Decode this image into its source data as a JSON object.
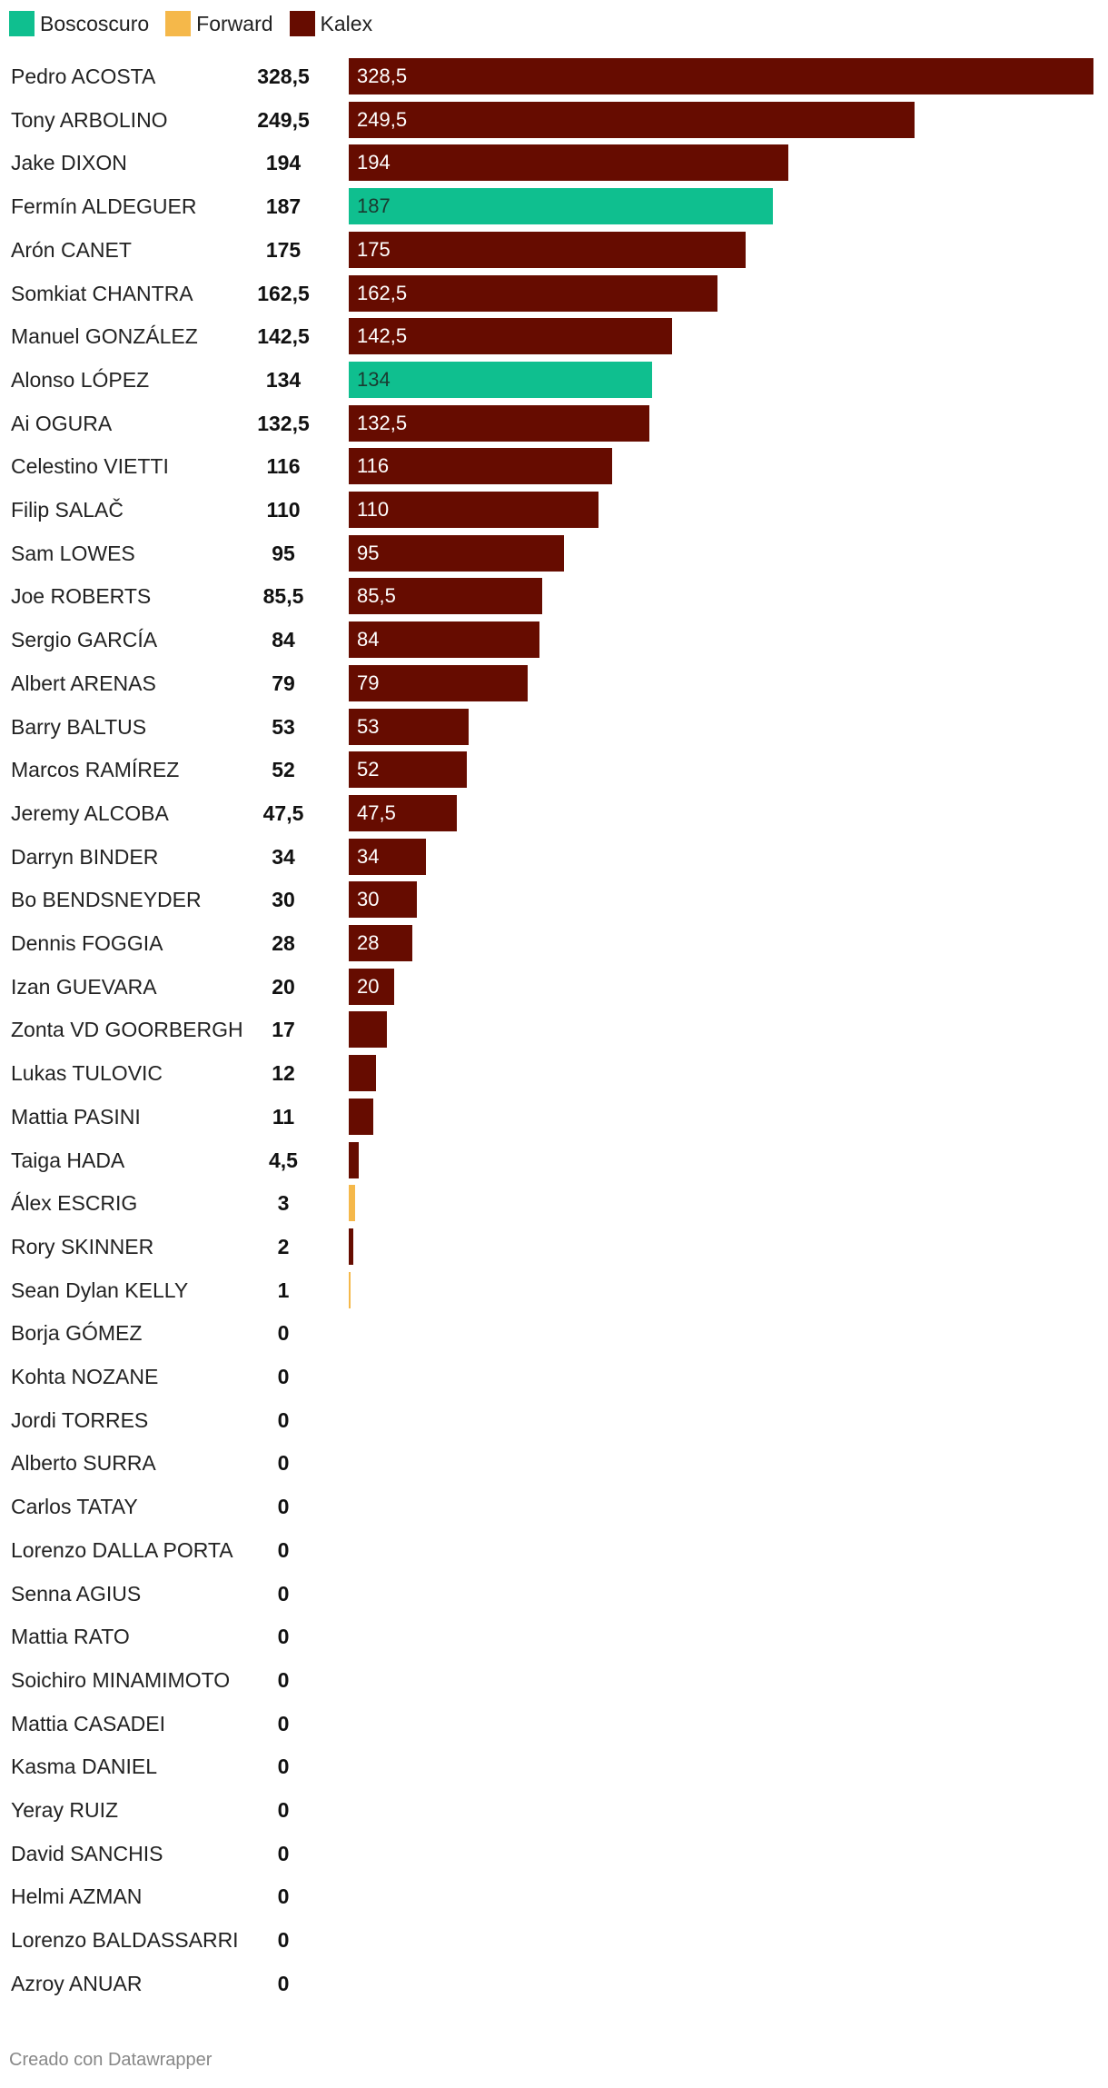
{
  "legend": [
    {
      "name": "Boscoscuro",
      "color": "#0fbf8f"
    },
    {
      "name": "Forward",
      "color": "#f5b84a"
    },
    {
      "name": "Kalex",
      "color": "#660c00"
    }
  ],
  "chart_data": {
    "type": "bar",
    "orientation": "horizontal",
    "xlim": [
      0,
      328.5
    ],
    "rows": [
      {
        "name": "Pedro ACOSTA",
        "value": 328.5,
        "display": "328,5",
        "bar_label": "328,5",
        "team": "Kalex"
      },
      {
        "name": "Tony ARBOLINO",
        "value": 249.5,
        "display": "249,5",
        "bar_label": "249,5",
        "team": "Kalex"
      },
      {
        "name": "Jake DIXON",
        "value": 194,
        "display": "194",
        "bar_label": "194",
        "team": "Kalex"
      },
      {
        "name": "Fermín ALDEGUER",
        "value": 187,
        "display": "187",
        "bar_label": "187",
        "team": "Boscoscuro"
      },
      {
        "name": "Arón CANET",
        "value": 175,
        "display": "175",
        "bar_label": "175",
        "team": "Kalex"
      },
      {
        "name": "Somkiat CHANTRA",
        "value": 162.5,
        "display": "162,5",
        "bar_label": "162,5",
        "team": "Kalex"
      },
      {
        "name": "Manuel GONZÁLEZ",
        "value": 142.5,
        "display": "142,5",
        "bar_label": "142,5",
        "team": "Kalex"
      },
      {
        "name": "Alonso LÓPEZ",
        "value": 134,
        "display": "134",
        "bar_label": "134",
        "team": "Boscoscuro"
      },
      {
        "name": "Ai OGURA",
        "value": 132.5,
        "display": "132,5",
        "bar_label": "132,5",
        "team": "Kalex"
      },
      {
        "name": "Celestino VIETTI",
        "value": 116,
        "display": "116",
        "bar_label": "116",
        "team": "Kalex"
      },
      {
        "name": "Filip SALAČ",
        "value": 110,
        "display": "110",
        "bar_label": "110",
        "team": "Kalex"
      },
      {
        "name": "Sam LOWES",
        "value": 95,
        "display": "95",
        "bar_label": "95",
        "team": "Kalex"
      },
      {
        "name": "Joe ROBERTS",
        "value": 85.5,
        "display": "85,5",
        "bar_label": "85,5",
        "team": "Kalex"
      },
      {
        "name": "Sergio GARCÍA",
        "value": 84,
        "display": "84",
        "bar_label": "84",
        "team": "Kalex"
      },
      {
        "name": "Albert ARENAS",
        "value": 79,
        "display": "79",
        "bar_label": "79",
        "team": "Kalex"
      },
      {
        "name": "Barry BALTUS",
        "value": 53,
        "display": "53",
        "bar_label": "53",
        "team": "Kalex"
      },
      {
        "name": "Marcos RAMÍREZ",
        "value": 52,
        "display": "52",
        "bar_label": "52",
        "team": "Kalex"
      },
      {
        "name": "Jeremy ALCOBA",
        "value": 47.5,
        "display": "47,5",
        "bar_label": "47,5",
        "team": "Kalex"
      },
      {
        "name": "Darryn BINDER",
        "value": 34,
        "display": "34",
        "bar_label": "34",
        "team": "Kalex"
      },
      {
        "name": "Bo BENDSNEYDER",
        "value": 30,
        "display": "30",
        "bar_label": "30",
        "team": "Kalex"
      },
      {
        "name": "Dennis FOGGIA",
        "value": 28,
        "display": "28",
        "bar_label": "28",
        "team": "Kalex"
      },
      {
        "name": "Izan GUEVARA",
        "value": 20,
        "display": "20",
        "bar_label": "20",
        "team": "Kalex"
      },
      {
        "name": "Zonta VD GOORBERGH",
        "value": 17,
        "display": "17",
        "bar_label": "",
        "team": "Kalex"
      },
      {
        "name": "Lukas TULOVIC",
        "value": 12,
        "display": "12",
        "bar_label": "",
        "team": "Kalex"
      },
      {
        "name": "Mattia PASINI",
        "value": 11,
        "display": "11",
        "bar_label": "",
        "team": "Kalex"
      },
      {
        "name": "Taiga HADA",
        "value": 4.5,
        "display": "4,5",
        "bar_label": "",
        "team": "Kalex"
      },
      {
        "name": "Álex ESCRIG",
        "value": 3,
        "display": "3",
        "bar_label": "",
        "team": "Forward"
      },
      {
        "name": "Rory SKINNER",
        "value": 2,
        "display": "2",
        "bar_label": "",
        "team": "Kalex"
      },
      {
        "name": "Sean Dylan KELLY",
        "value": 1,
        "display": "1",
        "bar_label": "",
        "team": "Forward"
      },
      {
        "name": "Borja GÓMEZ",
        "value": 0,
        "display": "0",
        "bar_label": "",
        "team": "Kalex"
      },
      {
        "name": "Kohta NOZANE",
        "value": 0,
        "display": "0",
        "bar_label": "",
        "team": "Kalex"
      },
      {
        "name": "Jordi TORRES",
        "value": 0,
        "display": "0",
        "bar_label": "",
        "team": "Kalex"
      },
      {
        "name": "Alberto SURRA",
        "value": 0,
        "display": "0",
        "bar_label": "",
        "team": "Kalex"
      },
      {
        "name": "Carlos TATAY",
        "value": 0,
        "display": "0",
        "bar_label": "",
        "team": "Kalex"
      },
      {
        "name": "Lorenzo DALLA PORTA",
        "value": 0,
        "display": "0",
        "bar_label": "",
        "team": "Kalex"
      },
      {
        "name": "Senna AGIUS",
        "value": 0,
        "display": "0",
        "bar_label": "",
        "team": "Kalex"
      },
      {
        "name": "Mattia RATO",
        "value": 0,
        "display": "0",
        "bar_label": "",
        "team": "Kalex"
      },
      {
        "name": "Soichiro MINAMIMOTO",
        "value": 0,
        "display": "0",
        "bar_label": "",
        "team": "Kalex"
      },
      {
        "name": "Mattia CASADEI",
        "value": 0,
        "display": "0",
        "bar_label": "",
        "team": "Kalex"
      },
      {
        "name": "Kasma DANIEL",
        "value": 0,
        "display": "0",
        "bar_label": "",
        "team": "Kalex"
      },
      {
        "name": "Yeray RUIZ",
        "value": 0,
        "display": "0",
        "bar_label": "",
        "team": "Kalex"
      },
      {
        "name": "David SANCHIS",
        "value": 0,
        "display": "0",
        "bar_label": "",
        "team": "Kalex"
      },
      {
        "name": "Helmi AZMAN",
        "value": 0,
        "display": "0",
        "bar_label": "",
        "team": "Kalex"
      },
      {
        "name": "Lorenzo BALDASSARRI",
        "value": 0,
        "display": "0",
        "bar_label": "",
        "team": "Kalex"
      },
      {
        "name": "Azroy ANUAR",
        "value": 0,
        "display": "0",
        "bar_label": "",
        "team": "Kalex"
      }
    ]
  },
  "footer": {
    "credit": "Creado con Datawrapper"
  }
}
